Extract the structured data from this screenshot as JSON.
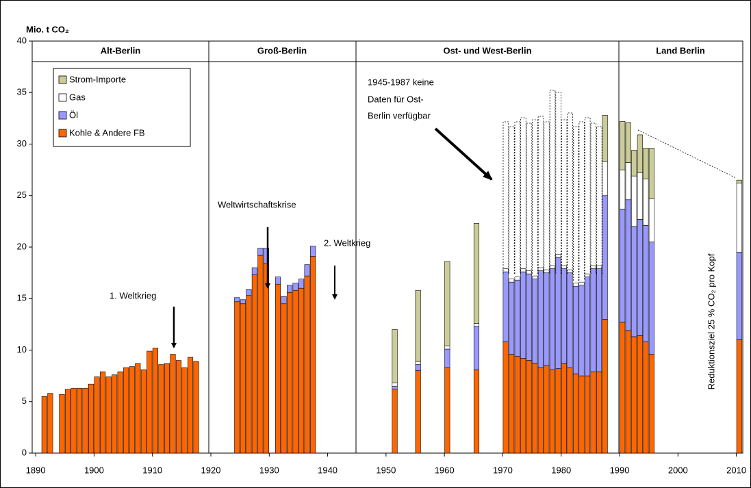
{
  "chart_data": {
    "type": "stacked_bar",
    "ylabel": "Mio. t CO₂",
    "sections": [
      "Alt-Berlin",
      "Groß-Berlin",
      "Ost- und West-Berlin",
      "Land Berlin"
    ],
    "annotations": [
      "1. Weltkrieg",
      "Weltwirtschaftskrise",
      "2. Weltkrieg",
      "1945-1987 keine",
      "Daten für Ost-",
      "Berlin verfügbar",
      "Reduktionsziel 25 % CO₂ pro Kopf"
    ],
    "x": [
      1891,
      1892,
      1894,
      1895,
      1896,
      1897,
      1898,
      1899,
      1900,
      1901,
      1902,
      1903,
      1904,
      1905,
      1906,
      1907,
      1908,
      1909,
      1910,
      1911,
      1912,
      1913,
      1914,
      1915,
      1916,
      1917,
      1924,
      1925,
      1926,
      1927,
      1928,
      1929,
      1931,
      1932,
      1933,
      1934,
      1935,
      1936,
      1937,
      1951,
      1955,
      1960,
      1965,
      1970,
      1971,
      1972,
      1973,
      1974,
      1975,
      1976,
      1977,
      1978,
      1979,
      1980,
      1981,
      1982,
      1983,
      1984,
      1985,
      1986,
      1987,
      1990,
      1991,
      1992,
      1993,
      1994,
      1995,
      2010
    ],
    "series": [
      {
        "name": "Kohle & Andere FB",
        "color": "#ff6600",
        "values": [
          5.5,
          5.8,
          5.7,
          6.2,
          6.3,
          6.3,
          6.3,
          6.7,
          7.4,
          7.9,
          7.4,
          7.6,
          7.9,
          8.3,
          8.4,
          8.7,
          8.1,
          9.9,
          10.2,
          8.6,
          8.7,
          9.6,
          9.0,
          8.3,
          9.3,
          8.9,
          14.7,
          14.5,
          15.3,
          17.3,
          19.2,
          18.4,
          16.4,
          14.5,
          15.6,
          15.8,
          16.0,
          17.2,
          19.1,
          6.2,
          8.0,
          8.3,
          8.1,
          10.8,
          9.6,
          9.4,
          9.2,
          9.0,
          8.7,
          8.3,
          8.5,
          8.1,
          8.2,
          8.7,
          8.3,
          7.7,
          7.5,
          7.5,
          7.9,
          7.9,
          13.0,
          12.7,
          11.9,
          11.3,
          11.4,
          10.8,
          9.6,
          11.0
        ]
      },
      {
        "name": "Öl",
        "color": "#9999ff",
        "values": [
          null,
          null,
          null,
          null,
          null,
          null,
          null,
          null,
          null,
          null,
          null,
          null,
          null,
          null,
          null,
          null,
          null,
          null,
          null,
          null,
          null,
          null,
          null,
          null,
          null,
          null,
          0.4,
          0.4,
          0.6,
          0.7,
          0.7,
          1.5,
          0.7,
          0.7,
          0.7,
          0.7,
          0.9,
          1.1,
          1.0,
          0.3,
          0.6,
          1.8,
          4.2,
          6.8,
          7.0,
          7.4,
          8.4,
          8.4,
          8.2,
          9.4,
          9.0,
          9.8,
          10.8,
          9.2,
          9.2,
          8.5,
          8.8,
          9.6,
          10.0,
          10.0,
          12.0,
          11.0,
          12.7,
          10.7,
          11.3,
          11.3,
          10.9,
          8.5
        ]
      },
      {
        "name": "Gas",
        "color": "#ffffff",
        "values": [
          null,
          null,
          null,
          null,
          null,
          null,
          null,
          null,
          null,
          null,
          null,
          null,
          null,
          null,
          null,
          null,
          null,
          null,
          null,
          null,
          null,
          null,
          null,
          null,
          null,
          null,
          null,
          null,
          null,
          null,
          null,
          null,
          null,
          null,
          null,
          null,
          null,
          null,
          null,
          0.3,
          0.3,
          0.3,
          0.3,
          0.3,
          0.3,
          0.3,
          0.3,
          0.3,
          0.3,
          0.3,
          0.3,
          0.3,
          0.3,
          0.3,
          0.3,
          0.3,
          0.3,
          0.3,
          0.3,
          0.3,
          3.3,
          3.8,
          3.6,
          4.9,
          4.5,
          4.5,
          4.2,
          6.7
        ]
      },
      {
        "name": "Strom-Importe",
        "color": "#cccc99",
        "values": [
          null,
          null,
          null,
          null,
          null,
          null,
          null,
          null,
          null,
          null,
          null,
          null,
          null,
          null,
          null,
          null,
          null,
          null,
          null,
          null,
          null,
          null,
          null,
          null,
          null,
          null,
          null,
          null,
          null,
          null,
          null,
          null,
          null,
          null,
          null,
          null,
          null,
          null,
          null,
          5.2,
          6.9,
          8.2,
          9.7,
          null,
          null,
          null,
          null,
          null,
          null,
          null,
          null,
          null,
          null,
          null,
          null,
          null,
          null,
          null,
          null,
          null,
          4.5,
          4.7,
          3.9,
          2.5,
          3.7,
          3.0,
          4.9,
          0.3
        ]
      }
    ],
    "xlim": [
      1889.4,
      2011.1
    ],
    "xticks": [
      1890,
      1900,
      1910,
      1920,
      1930,
      1940,
      1950,
      1960,
      1970,
      1980,
      1990,
      2000,
      2010
    ],
    "ylim": [
      0,
      40
    ],
    "yticks": [
      0,
      5,
      10,
      15,
      20,
      25,
      30,
      35,
      40
    ]
  }
}
